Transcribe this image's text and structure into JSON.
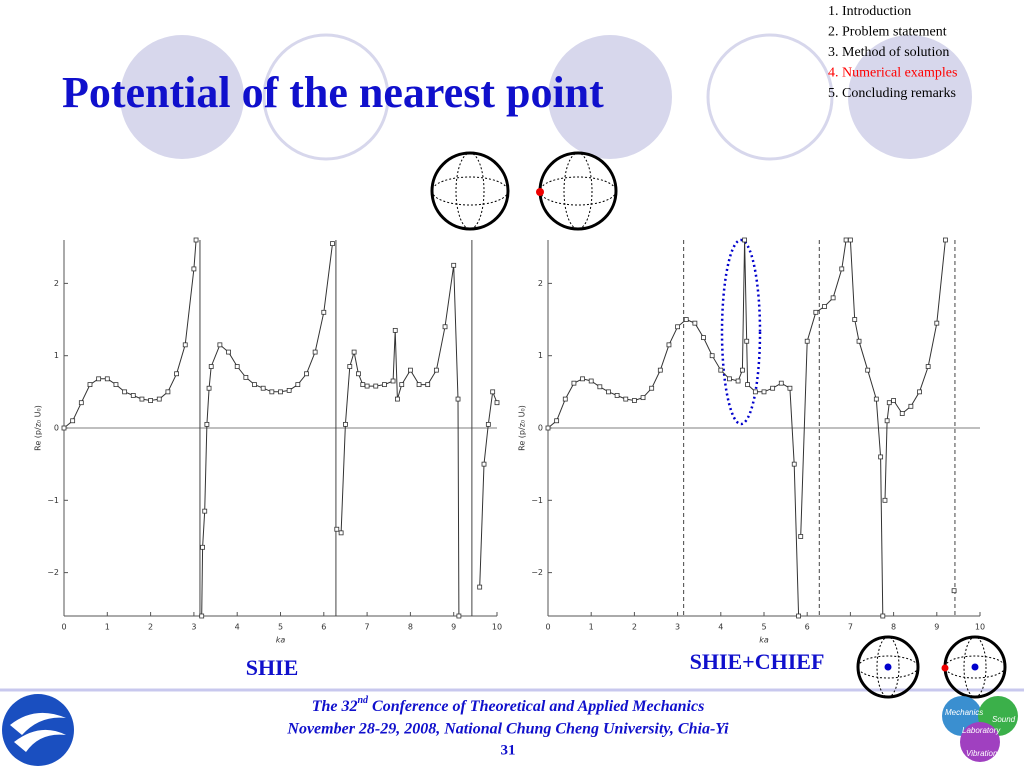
{
  "title": "Potential of the nearest point",
  "outline": {
    "items": [
      "1. Introduction",
      "2. Problem statement",
      "3. Method of solution",
      "4. Numerical examples",
      "5. Concluding remarks"
    ],
    "active": 3,
    "color": "#000000",
    "active_color": "#ff0000"
  },
  "footer": {
    "conference_before": "The 32",
    "conference_sup": "nd",
    "conference_after": " Conference of Theoretical and Applied Mechanics",
    "date": "November 28-29, 2008, National Chung Cheng University, Chia-Yi",
    "page": "31"
  },
  "logo": {
    "labels": [
      "Mechanics",
      "Sound",
      "Laboratory",
      "Vibration"
    ]
  },
  "chart_data": [
    {
      "type": "line",
      "caption": "SHIE",
      "xlabel": "ka",
      "ylabel": "Re (p/z₀ U₀)",
      "xlim": [
        0,
        10
      ],
      "ylim": [
        -2.6,
        2.6
      ],
      "xticks": [
        0,
        1,
        2,
        3,
        4,
        5,
        6,
        7,
        8,
        9,
        10
      ],
      "yticks": [
        {
          "value": -2,
          "label": "−2"
        },
        {
          "value": -1,
          "label": "−1"
        },
        0,
        1,
        2
      ],
      "vlines": [
        3.14,
        6.28,
        9.42
      ],
      "vline_style": "solid",
      "series": [
        {
          "color": "#333333",
          "marker": "square",
          "x": [
            0,
            0.2,
            0.4,
            0.6,
            0.8,
            1.0,
            1.2,
            1.4,
            1.6,
            1.8,
            2.0,
            2.2,
            2.4,
            2.6,
            2.8,
            3.0,
            3.05,
            3.1,
            3.18,
            3.2,
            3.25,
            3.3,
            3.35,
            3.4,
            3.6,
            3.8,
            4.0,
            4.2,
            4.4,
            4.6,
            4.8,
            5.0,
            5.2,
            5.4,
            5.6,
            5.8,
            6.0,
            6.2,
            6.25,
            6.3,
            6.4,
            6.5,
            6.6,
            6.7,
            6.8,
            6.9,
            7.0,
            7.2,
            7.4,
            7.6,
            7.65,
            7.7,
            7.8,
            8.0,
            8.2,
            8.4,
            8.6,
            8.8,
            9.0,
            9.1,
            9.12,
            9.3,
            9.6,
            9.7,
            9.8,
            9.9,
            10.0
          ],
          "values": [
            0,
            0.1,
            0.35,
            0.6,
            0.68,
            0.68,
            0.6,
            0.5,
            0.45,
            0.4,
            0.38,
            0.4,
            0.5,
            0.75,
            1.15,
            2.2,
            2.6,
            null,
            -2.6,
            -1.65,
            -1.15,
            0.05,
            0.55,
            0.85,
            1.15,
            1.05,
            0.85,
            0.7,
            0.6,
            0.55,
            0.5,
            0.5,
            0.52,
            0.6,
            0.75,
            1.05,
            1.6,
            2.55,
            null,
            -1.4,
            -1.45,
            0.05,
            0.85,
            1.05,
            0.75,
            0.6,
            0.58,
            0.58,
            0.6,
            0.65,
            1.35,
            0.4,
            0.6,
            0.8,
            0.6,
            0.6,
            0.8,
            1.4,
            2.25,
            0.4,
            -2.6,
            null,
            -2.2,
            -0.5,
            0.05,
            0.5,
            0.35
          ]
        }
      ]
    },
    {
      "type": "line",
      "caption": "SHIE+CHIEF",
      "xlabel": "ka",
      "ylabel": "Re (p/z₀ U₀)",
      "xlim": [
        0,
        10
      ],
      "ylim": [
        -2.6,
        2.6
      ],
      "xticks": [
        0,
        1,
        2,
        3,
        4,
        5,
        6,
        7,
        8,
        9,
        10
      ],
      "yticks": [
        {
          "value": -2,
          "label": "−2"
        },
        {
          "value": -1,
          "label": "−1"
        },
        0,
        1,
        2
      ],
      "vlines": [
        3.14,
        6.28,
        9.42
      ],
      "vline_style": "dashed",
      "series": [
        {
          "color": "#333333",
          "marker": "square",
          "x": [
            0,
            0.2,
            0.4,
            0.6,
            0.8,
            1.0,
            1.2,
            1.4,
            1.6,
            1.8,
            2.0,
            2.2,
            2.4,
            2.6,
            2.8,
            3.0,
            3.2,
            3.4,
            3.6,
            3.8,
            4.0,
            4.2,
            4.4,
            4.5,
            4.55,
            4.6,
            4.62,
            4.8,
            5.0,
            5.2,
            5.4,
            5.6,
            5.7,
            5.8,
            5.82,
            5.85,
            6.0,
            6.2,
            6.4,
            6.6,
            6.8,
            6.9,
            6.95,
            7.0,
            7.1,
            7.2,
            7.4,
            7.6,
            7.7,
            7.75,
            7.78,
            7.8,
            7.85,
            7.9,
            8.0,
            8.2,
            8.4,
            8.6,
            8.8,
            9.0,
            9.2,
            9.3,
            9.4
          ],
          "values": [
            0,
            0.1,
            0.4,
            0.62,
            0.68,
            0.65,
            0.57,
            0.5,
            0.45,
            0.4,
            0.38,
            0.42,
            0.55,
            0.8,
            1.15,
            1.4,
            1.5,
            1.45,
            1.25,
            1.0,
            0.8,
            0.68,
            0.65,
            0.8,
            2.6,
            1.2,
            0.6,
            0.5,
            0.5,
            0.55,
            0.62,
            0.55,
            -0.5,
            -2.6,
            null,
            -1.5,
            1.2,
            1.6,
            1.68,
            1.8,
            2.2,
            2.6,
            null,
            2.6,
            1.5,
            1.2,
            0.8,
            0.4,
            -0.4,
            -2.6,
            null,
            -1.0,
            0.1,
            0.35,
            0.38,
            0.2,
            0.3,
            0.5,
            0.85,
            1.45,
            2.6,
            null,
            -2.25
          ]
        }
      ]
    }
  ]
}
